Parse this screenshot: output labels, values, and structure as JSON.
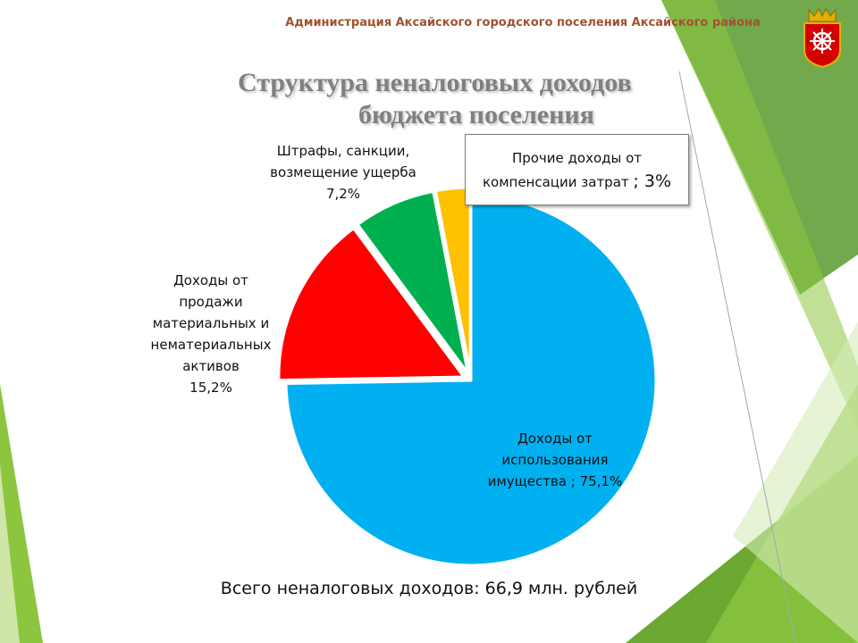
{
  "header": {
    "organization": "Администрация Аксайского городского поселения Аксайского района"
  },
  "slide": {
    "title_line1": "Структура  неналоговых доходов",
    "title_line2": "бюджета  поселения",
    "total_text": "Всего неналоговых доходов: 66,9 млн. рублей"
  },
  "colors": {
    "header": "#a0522d",
    "title": "#808080",
    "green_dark": "#5a9a2e",
    "green_light": "#8cc63f"
  },
  "chart_data": {
    "type": "pie",
    "title": "Структура  неналоговых доходов бюджета  поселения",
    "slices": [
      {
        "label_lines": [
          "Доходы от",
          "использования",
          "имущества ; 75,1%"
        ],
        "value": 75.1,
        "color": "#00b0f0"
      },
      {
        "label_lines": [
          "Доходы от",
          "продажи",
          "материальных  и",
          "нематериальных",
          "активов",
          "15,2%"
        ],
        "value": 15.2,
        "color": "#ff0000"
      },
      {
        "label_lines": [
          "Штрафы, санкции,",
          "возмещение  ущерба",
          "7,2%"
        ],
        "value": 7.2,
        "color": "#00b050"
      },
      {
        "label_lines": [
          "Прочие доходы от",
          "компенсации  затрат"
        ],
        "value_label": "; 3%",
        "value": 3,
        "color": "#ffc000"
      }
    ]
  }
}
